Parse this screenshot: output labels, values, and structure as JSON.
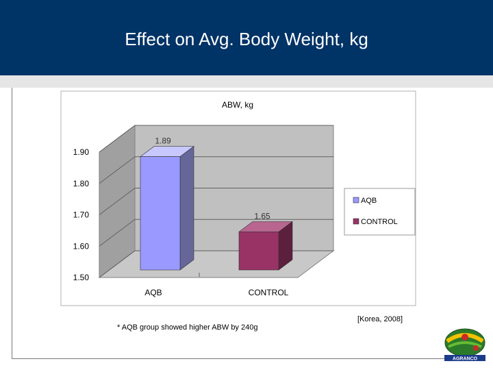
{
  "slide": {
    "title": "Effect on Avg. Body Weight, kg",
    "note": "* AQB group showed higher ABW by 240g",
    "source": "[Korea, 2008]"
  },
  "chart_data": {
    "type": "bar",
    "title": "ABW, kg",
    "categories": [
      "AQB",
      "CONTROL"
    ],
    "values": [
      1.89,
      1.65
    ],
    "data_labels": [
      "1.89",
      "1.65"
    ],
    "ylim": [
      1.5,
      1.9
    ],
    "yticks": [
      "1.90",
      "1.80",
      "1.70",
      "1.60",
      "1.50"
    ],
    "legend": [
      "AQB",
      "CONTROL"
    ],
    "legend_position": "right",
    "colors": [
      "#9999ff",
      "#993366"
    ],
    "grid": true,
    "style": "3d-column"
  },
  "logo": {
    "text": "AGRANCO"
  }
}
